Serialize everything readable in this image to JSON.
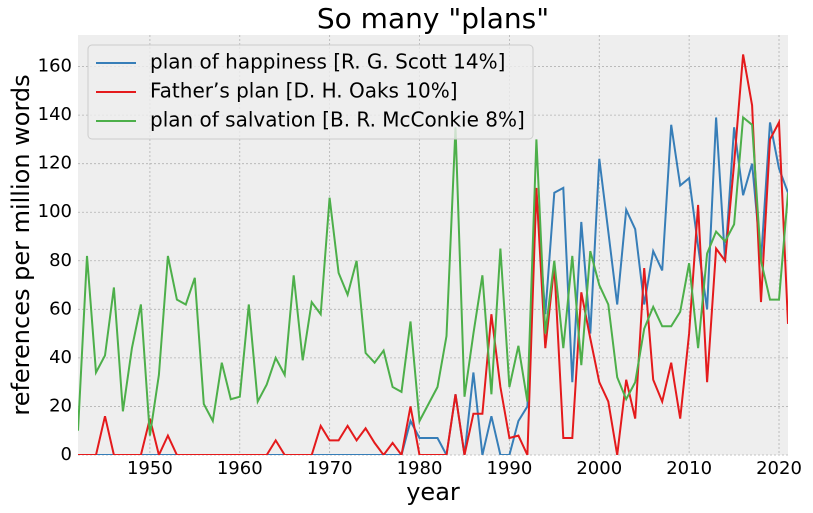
{
  "chart_data": {
    "type": "line",
    "title": "So many \"plans\"",
    "xlabel": "year",
    "ylabel": "references per million words",
    "x": [
      1942,
      1943,
      1944,
      1945,
      1946,
      1947,
      1948,
      1949,
      1950,
      1951,
      1952,
      1953,
      1954,
      1955,
      1956,
      1957,
      1958,
      1959,
      1960,
      1961,
      1962,
      1963,
      1964,
      1965,
      1966,
      1967,
      1968,
      1969,
      1970,
      1971,
      1972,
      1973,
      1974,
      1975,
      1976,
      1977,
      1978,
      1979,
      1980,
      1981,
      1982,
      1983,
      1984,
      1985,
      1986,
      1987,
      1988,
      1989,
      1990,
      1991,
      1992,
      1993,
      1994,
      1995,
      1996,
      1997,
      1998,
      1999,
      2000,
      2001,
      2002,
      2003,
      2004,
      2005,
      2006,
      2007,
      2008,
      2009,
      2010,
      2011,
      2012,
      2013,
      2014,
      2015,
      2016,
      2017,
      2018,
      2019,
      2020,
      2021
    ],
    "series": [
      {
        "name": "plan of happiness [R. G. Scott 14%]",
        "color": "#377eb8",
        "values": [
          0,
          0,
          0,
          0,
          0,
          0,
          0,
          0,
          0,
          0,
          0,
          0,
          0,
          0,
          0,
          0,
          0,
          0,
          0,
          0,
          0,
          0,
          0,
          0,
          0,
          0,
          0,
          0,
          0,
          0,
          0,
          0,
          0,
          0,
          0,
          0,
          0,
          14,
          7,
          7,
          7,
          0,
          25,
          0,
          34,
          0,
          16,
          0,
          0,
          14,
          20,
          108,
          58,
          108,
          110,
          30,
          96,
          50,
          122,
          92,
          62,
          101,
          93,
          62,
          84,
          76,
          136,
          111,
          114,
          86,
          60,
          139,
          80,
          135,
          107,
          120,
          80,
          137,
          118,
          108
        ]
      },
      {
        "name": "Father’s plan [D. H. Oaks 10%]",
        "color": "#e41a1c",
        "values": [
          0,
          0,
          0,
          16,
          0,
          0,
          0,
          0,
          15,
          0,
          8,
          0,
          0,
          0,
          0,
          0,
          0,
          0,
          0,
          0,
          0,
          0,
          6,
          0,
          0,
          0,
          0,
          12,
          6,
          6,
          12,
          6,
          11,
          5,
          0,
          5,
          0,
          20,
          0,
          0,
          0,
          0,
          25,
          0,
          17,
          17,
          58,
          28,
          7,
          8,
          0,
          110,
          44,
          78,
          7,
          7,
          67,
          48,
          30,
          22,
          0,
          31,
          15,
          77,
          31,
          22,
          38,
          15,
          50,
          103,
          30,
          85,
          80,
          120,
          165,
          144,
          63,
          130,
          137,
          54
        ]
      },
      {
        "name": "plan of salvation [B. R. McConkie 8%]",
        "color": "#4daf4a",
        "values": [
          10,
          82,
          34,
          41,
          69,
          18,
          44,
          62,
          8,
          33,
          82,
          64,
          62,
          73,
          21,
          14,
          38,
          23,
          24,
          62,
          22,
          29,
          40,
          33,
          74,
          39,
          63,
          58,
          106,
          75,
          66,
          80,
          42,
          38,
          43,
          28,
          26,
          55,
          14,
          21,
          28,
          49,
          135,
          24,
          50,
          74,
          25,
          85,
          28,
          45,
          22,
          130,
          50,
          80,
          44,
          82,
          37,
          84,
          70,
          62,
          32,
          23,
          30,
          52,
          61,
          53,
          53,
          59,
          79,
          44,
          83,
          92,
          88,
          95,
          139,
          136,
          80,
          64,
          64,
          108
        ]
      }
    ],
    "xlim": [
      1942,
      2021
    ],
    "ylim": [
      0,
      173
    ],
    "xticks": [
      1950,
      1960,
      1970,
      1980,
      1990,
      2000,
      2010,
      2020
    ],
    "yticks": [
      0,
      20,
      40,
      60,
      80,
      100,
      120,
      140,
      160
    ],
    "grid": true,
    "legend": "upper left"
  }
}
